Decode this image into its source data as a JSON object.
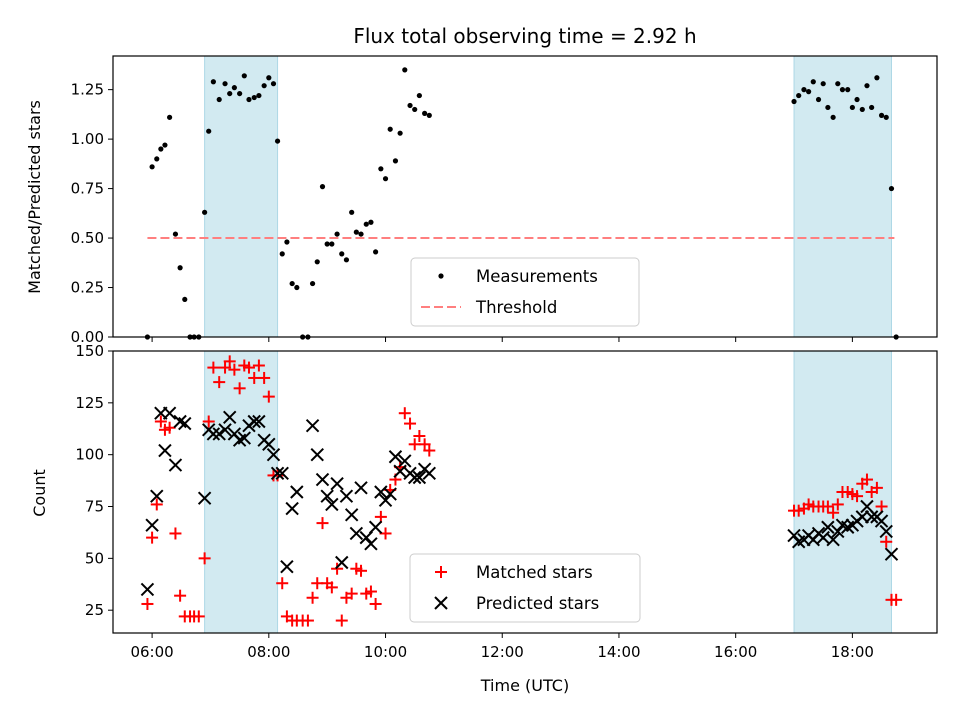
{
  "figure": {
    "title": "Flux total observing time = 2.92 h",
    "xlabel": "Time (UTC)"
  },
  "colors": {
    "shade": "#add8e6",
    "measure": "#000000",
    "threshold": "#ff7f7f",
    "matched": "#ff0000",
    "predicted": "#000000"
  },
  "chart_data": [
    {
      "type": "scatter",
      "ylabel": "Matched/Predicted stars",
      "xlim": [
        5.33,
        19.45
      ],
      "ylim": [
        0,
        1.42
      ],
      "yticks": [
        "0.00",
        "0.25",
        "0.50",
        "0.75",
        "1.00",
        "1.25"
      ],
      "yticks_values": [
        0,
        0.25,
        0.5,
        0.75,
        1.0,
        1.25
      ],
      "shaded_intervals": [
        [
          6.9,
          8.15
        ],
        [
          17.0,
          18.67
        ]
      ],
      "legend": {
        "location": "lower center",
        "entries": [
          "Measurements",
          "Threshold"
        ]
      },
      "threshold": {
        "name": "Threshold",
        "y": 0.5,
        "x": [
          5.92,
          18.72
        ]
      },
      "series": [
        {
          "name": "Measurements",
          "marker": "dot",
          "x": [
            5.92,
            6.0,
            6.08,
            6.15,
            6.22,
            6.3,
            6.4,
            6.48,
            6.56,
            6.65,
            6.72,
            6.8,
            6.9,
            6.97,
            7.05,
            7.15,
            7.25,
            7.33,
            7.41,
            7.5,
            7.58,
            7.66,
            7.75,
            7.83,
            7.92,
            8.0,
            8.08,
            8.15,
            8.23,
            8.31,
            8.4,
            8.48,
            8.58,
            8.67,
            8.75,
            8.83,
            8.92,
            9.0,
            9.08,
            9.17,
            9.25,
            9.33,
            9.42,
            9.5,
            9.58,
            9.67,
            9.75,
            9.83,
            9.92,
            10.0,
            10.08,
            10.17,
            10.25,
            10.33,
            10.42,
            10.5,
            10.58,
            10.67,
            10.75,
            17.0,
            17.08,
            17.17,
            17.25,
            17.33,
            17.42,
            17.5,
            17.58,
            17.67,
            17.75,
            17.83,
            17.92,
            18.0,
            18.08,
            18.17,
            18.25,
            18.33,
            18.42,
            18.5,
            18.58,
            18.67,
            18.75
          ],
          "y": [
            0.0,
            0.86,
            0.9,
            0.95,
            0.97,
            1.11,
            0.52,
            0.35,
            0.19,
            0.0,
            0.0,
            0.0,
            0.63,
            1.04,
            1.29,
            1.2,
            1.28,
            1.23,
            1.26,
            1.23,
            1.32,
            1.2,
            1.21,
            1.22,
            1.27,
            1.31,
            1.28,
            0.99,
            0.42,
            0.48,
            0.27,
            0.25,
            0.0,
            0.0,
            0.27,
            0.38,
            0.76,
            0.47,
            0.47,
            0.52,
            0.42,
            0.39,
            0.63,
            0.53,
            0.52,
            0.57,
            0.58,
            0.43,
            0.85,
            0.8,
            1.05,
            0.89,
            1.03,
            1.35,
            1.17,
            1.15,
            1.22,
            1.13,
            1.12,
            1.19,
            1.22,
            1.25,
            1.24,
            1.29,
            1.2,
            1.28,
            1.16,
            1.11,
            1.28,
            1.25,
            1.25,
            1.16,
            1.2,
            1.15,
            1.27,
            1.16,
            1.31,
            1.12,
            1.11,
            0.75,
            0.0
          ]
        }
      ]
    },
    {
      "type": "scatter",
      "ylabel": "Count",
      "xlim": [
        5.33,
        19.45
      ],
      "ylim": [
        14,
        150
      ],
      "yticks": [
        "25",
        "50",
        "75",
        "100",
        "125",
        "150"
      ],
      "yticks_values": [
        25,
        50,
        75,
        100,
        125,
        150
      ],
      "xticks": [
        "06:00",
        "08:00",
        "10:00",
        "12:00",
        "14:00",
        "16:00",
        "18:00"
      ],
      "xticks_values": [
        6,
        8,
        10,
        12,
        14,
        16,
        18
      ],
      "shaded_intervals": [
        [
          6.9,
          8.15
        ],
        [
          17.0,
          18.67
        ]
      ],
      "legend": {
        "location": "lower center",
        "entries": [
          "Matched stars",
          "Predicted stars"
        ]
      },
      "series": [
        {
          "name": "Matched stars",
          "marker": "plus",
          "x": [
            5.92,
            6.0,
            6.08,
            6.15,
            6.22,
            6.3,
            6.4,
            6.48,
            6.56,
            6.65,
            6.72,
            6.8,
            6.9,
            6.97,
            7.05,
            7.15,
            7.25,
            7.33,
            7.41,
            7.5,
            7.58,
            7.66,
            7.75,
            7.83,
            7.92,
            8.0,
            8.08,
            8.15,
            8.23,
            8.31,
            8.4,
            8.48,
            8.58,
            8.67,
            8.75,
            8.83,
            8.92,
            9.0,
            9.08,
            9.17,
            9.25,
            9.33,
            9.42,
            9.5,
            9.58,
            9.67,
            9.75,
            9.83,
            9.92,
            10.0,
            10.08,
            10.17,
            10.25,
            10.33,
            10.42,
            10.5,
            10.58,
            10.67,
            10.75,
            17.0,
            17.08,
            17.17,
            17.25,
            17.33,
            17.42,
            17.5,
            17.58,
            17.67,
            17.75,
            17.83,
            17.92,
            18.0,
            18.08,
            18.17,
            18.25,
            18.33,
            18.42,
            18.5,
            18.58,
            18.67,
            18.75
          ],
          "y": [
            28,
            60,
            76,
            116,
            112,
            113,
            62,
            32,
            22,
            22,
            22,
            22,
            50,
            116,
            142,
            135,
            142,
            145,
            141,
            132,
            143,
            142,
            137,
            143,
            137,
            128,
            90,
            90,
            38,
            22,
            20,
            20,
            20,
            20,
            31,
            38,
            67,
            38,
            36,
            45,
            20,
            31,
            33,
            45,
            44,
            33,
            34,
            28,
            70,
            62,
            83,
            88,
            94,
            120,
            115,
            105,
            109,
            105,
            102,
            73,
            73,
            74,
            76,
            75,
            75,
            75,
            75,
            72,
            76,
            82,
            82,
            81,
            80,
            86,
            88,
            82,
            84,
            75,
            58,
            30,
            30
          ]
        },
        {
          "name": "Predicted stars",
          "marker": "cross",
          "x": [
            5.92,
            6.0,
            6.08,
            6.15,
            6.22,
            6.3,
            6.4,
            6.48,
            6.56,
            6.9,
            6.97,
            7.05,
            7.15,
            7.25,
            7.33,
            7.41,
            7.5,
            7.58,
            7.66,
            7.75,
            7.83,
            7.92,
            8.0,
            8.08,
            8.15,
            8.23,
            8.31,
            8.4,
            8.48,
            8.75,
            8.83,
            8.92,
            9.0,
            9.08,
            9.17,
            9.25,
            9.33,
            9.42,
            9.5,
            9.58,
            9.67,
            9.75,
            9.83,
            9.92,
            10.0,
            10.08,
            10.17,
            10.25,
            10.33,
            10.42,
            10.5,
            10.58,
            10.67,
            10.75,
            17.0,
            17.08,
            17.17,
            17.25,
            17.33,
            17.42,
            17.5,
            17.58,
            17.67,
            17.75,
            17.83,
            17.92,
            18.0,
            18.08,
            18.17,
            18.25,
            18.33,
            18.42,
            18.5,
            18.58,
            18.67
          ],
          "y": [
            35,
            66,
            80,
            120,
            102,
            120,
            95,
            116,
            115,
            79,
            112,
            110,
            110,
            112,
            118,
            110,
            107,
            108,
            114,
            116,
            116,
            107,
            105,
            100,
            91,
            91,
            46,
            74,
            82,
            114,
            100,
            88,
            80,
            76,
            86,
            48,
            80,
            71,
            62,
            84,
            60,
            57,
            65,
            82,
            78,
            81,
            99,
            92,
            97,
            91,
            89,
            89,
            93,
            91,
            61,
            58,
            59,
            61,
            59,
            62,
            60,
            65,
            59,
            63,
            66,
            65,
            66,
            68,
            70,
            75,
            70,
            70,
            68,
            63,
            52
          ]
        }
      ]
    }
  ]
}
